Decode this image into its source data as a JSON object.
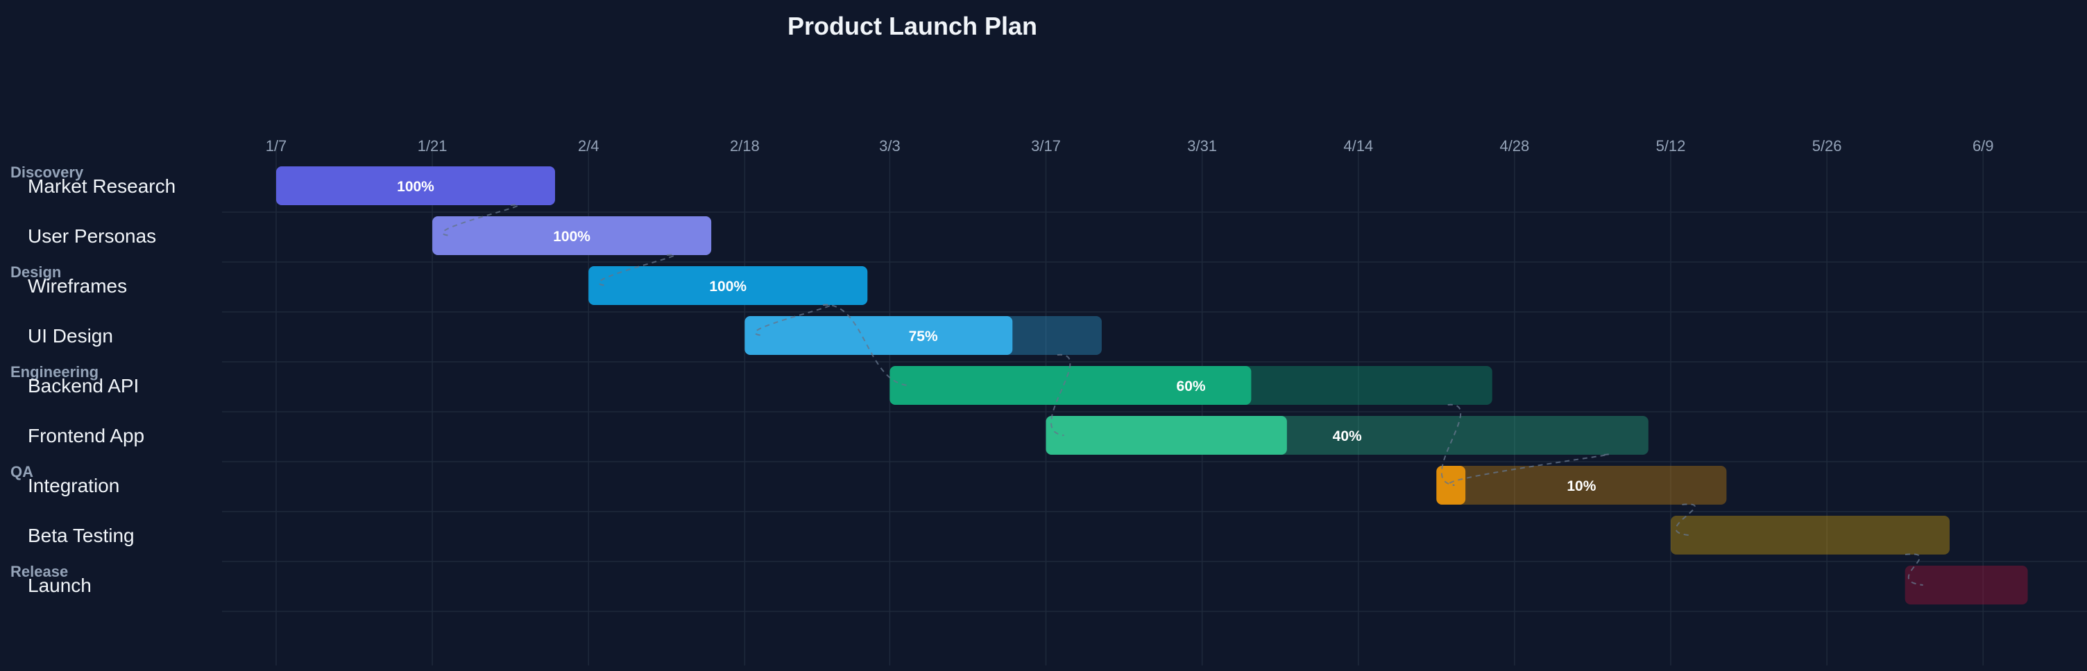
{
  "chart_data": {
    "type": "gantt",
    "title": "Product Launch Plan",
    "x_ticks": [
      "1/7",
      "1/21",
      "2/4",
      "2/18",
      "3/3",
      "3/17",
      "3/31",
      "4/14",
      "4/28",
      "5/12",
      "5/26",
      "6/9"
    ],
    "groups": [
      {
        "name": "Discovery",
        "tasks": [
          "Market Research",
          "User Personas"
        ]
      },
      {
        "name": "Design",
        "tasks": [
          "Wireframes",
          "UI Design"
        ]
      },
      {
        "name": "Engineering",
        "tasks": [
          "Backend API",
          "Frontend App"
        ]
      },
      {
        "name": "QA",
        "tasks": [
          "Integration",
          "Beta Testing"
        ]
      },
      {
        "name": "Release",
        "tasks": [
          "Launch"
        ]
      }
    ],
    "tasks": [
      {
        "name": "Market Research",
        "start": "1/7",
        "end": "2/1",
        "progress": 100,
        "progress_label": "100%",
        "color": "#5b5fde"
      },
      {
        "name": "User Personas",
        "start": "1/21",
        "end": "2/15",
        "progress": 100,
        "progress_label": "100%",
        "color": "#7b83e6"
      },
      {
        "name": "Wireframes",
        "start": "2/4",
        "end": "3/1",
        "progress": 100,
        "progress_label": "100%",
        "color": "#0e96d4"
      },
      {
        "name": "UI Design",
        "start": "2/18",
        "end": "3/22",
        "progress": 75,
        "progress_label": "75%",
        "color": "#33a9e3"
      },
      {
        "name": "Backend API",
        "start": "3/3",
        "end": "4/26",
        "progress": 60,
        "progress_label": "60%",
        "color": "#12a87a"
      },
      {
        "name": "Frontend App",
        "start": "3/17",
        "end": "5/10",
        "progress": 40,
        "progress_label": "40%",
        "color": "#2fbe8c"
      },
      {
        "name": "Integration",
        "start": "4/21",
        "end": "5/17",
        "progress": 10,
        "progress_label": "10%",
        "color": "#e08e0b"
      },
      {
        "name": "Beta Testing",
        "start": "5/12",
        "end": "6/6",
        "progress": 0,
        "progress_label": "",
        "color": "#eab308"
      },
      {
        "name": "Launch",
        "start": "6/2",
        "end": "6/13",
        "progress": 0,
        "progress_label": "",
        "color": "#be123c"
      }
    ],
    "dependencies": [
      [
        "Market Research",
        "User Personas"
      ],
      [
        "User Personas",
        "Wireframes"
      ],
      [
        "Wireframes",
        "UI Design"
      ],
      [
        "Wireframes",
        "Backend API"
      ],
      [
        "UI Design",
        "Frontend App"
      ],
      [
        "Backend API",
        "Integration"
      ],
      [
        "Frontend App",
        "Integration"
      ],
      [
        "Integration",
        "Beta Testing"
      ],
      [
        "Beta Testing",
        "Launch"
      ]
    ],
    "colors": {
      "background": "#0f172a",
      "grid": "#1e293b",
      "remaining_track_opacity": 0.35
    }
  }
}
